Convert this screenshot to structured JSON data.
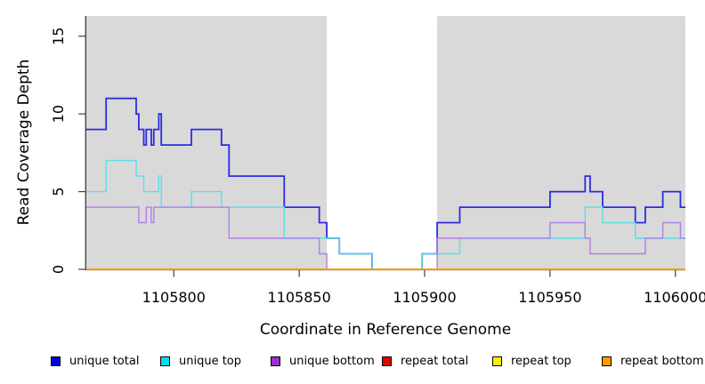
{
  "figure": {
    "xlabel": "Coordinate in Reference Genome",
    "ylabel": "Read Coverage Depth"
  },
  "legend": [
    {
      "label": "unique total",
      "color": "#0000dd"
    },
    {
      "label": "unique top",
      "color": "#00dde8"
    },
    {
      "label": "unique bottom",
      "color": "#9932cc"
    },
    {
      "label": "repeat total",
      "color": "#e60000"
    },
    {
      "label": "repeat top",
      "color": "#ffee00"
    },
    {
      "label": "repeat bottom",
      "color": "#ff9d00"
    }
  ],
  "chart_data": {
    "type": "line",
    "subtype": "step-coverage",
    "title": "",
    "xlabel": "Coordinate in Reference Genome",
    "ylabel": "Read Coverage Depth",
    "xlim": [
      1105765,
      1106004
    ],
    "ylim": [
      0,
      16.3
    ],
    "x_ticks": [
      1105800,
      1105850,
      1105900,
      1105950,
      1106000
    ],
    "y_ticks": [
      0,
      5,
      10,
      15
    ],
    "grid": false,
    "legend_position": "bottom",
    "plot_bg": "#d9d9d9",
    "gap_band": {
      "from": 1105861,
      "to": 1105905,
      "color": "#ffffff"
    },
    "series": [
      {
        "name": "unique total",
        "color": "#2c2cdf",
        "width": 1.8,
        "start": 9,
        "steps": [
          [
            1105773,
            11
          ],
          [
            1105785,
            10
          ],
          [
            1105786,
            9
          ],
          [
            1105788,
            8
          ],
          [
            1105789,
            9
          ],
          [
            1105791,
            8
          ],
          [
            1105792,
            9
          ],
          [
            1105794,
            10
          ],
          [
            1105795,
            8
          ],
          [
            1105807,
            9
          ],
          [
            1105819,
            8
          ],
          [
            1105822,
            6
          ],
          [
            1105844,
            4
          ],
          [
            1105858,
            3
          ],
          [
            1105861,
            2
          ],
          [
            1105866,
            1
          ],
          [
            1105879,
            0
          ],
          [
            1105899,
            1
          ],
          [
            1105905,
            3
          ],
          [
            1105914,
            4
          ],
          [
            1105950,
            5
          ],
          [
            1105964,
            6
          ],
          [
            1105966,
            5
          ],
          [
            1105971,
            4
          ],
          [
            1105984,
            3
          ],
          [
            1105988,
            4
          ],
          [
            1105995,
            5
          ],
          [
            1106002,
            4
          ]
        ]
      },
      {
        "name": "unique top",
        "color": "#59e0e6",
        "width": 1.4,
        "start": 5,
        "steps": [
          [
            1105773,
            7
          ],
          [
            1105785,
            6
          ],
          [
            1105788,
            5
          ],
          [
            1105794,
            6
          ],
          [
            1105795,
            4
          ],
          [
            1105807,
            5
          ],
          [
            1105819,
            4
          ],
          [
            1105844,
            2
          ],
          [
            1105866,
            1
          ],
          [
            1105879,
            0
          ],
          [
            1105899,
            1
          ],
          [
            1105914,
            2
          ],
          [
            1105964,
            4
          ],
          [
            1105971,
            3
          ],
          [
            1105984,
            2
          ]
        ]
      },
      {
        "name": "unique bottom",
        "color": "#b27fe6",
        "width": 1.4,
        "start": 4,
        "steps": [
          [
            1105786,
            3
          ],
          [
            1105789,
            4
          ],
          [
            1105791,
            3
          ],
          [
            1105792,
            4
          ],
          [
            1105822,
            2
          ],
          [
            1105858,
            1
          ],
          [
            1105861,
            0
          ],
          [
            1105905,
            2
          ],
          [
            1105950,
            3
          ],
          [
            1105964,
            2
          ],
          [
            1105966,
            1
          ],
          [
            1105988,
            2
          ],
          [
            1105995,
            3
          ],
          [
            1106002,
            2
          ]
        ]
      },
      {
        "name": "repeat total",
        "color": "#e60000",
        "width": 1.4,
        "start": 0,
        "steps": []
      },
      {
        "name": "repeat top",
        "color": "#ffee00",
        "width": 1.4,
        "start": 0,
        "steps": []
      },
      {
        "name": "repeat bottom",
        "color": "#ff9d00",
        "width": 1.6,
        "start": 0,
        "steps": []
      }
    ]
  }
}
